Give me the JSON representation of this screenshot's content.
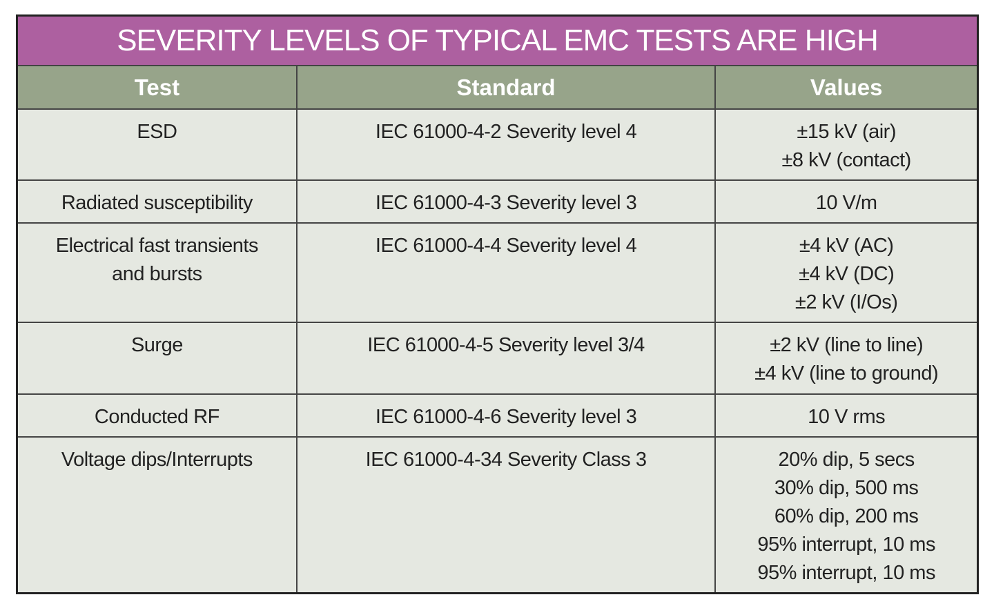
{
  "title": "SEVERITY LEVELS OF TYPICAL EMC TESTS ARE HIGH",
  "headers": [
    "Test",
    "Standard",
    "Values"
  ],
  "rows": [
    {
      "test": [
        "ESD"
      ],
      "standard": "IEC 61000-4-2 Severity level 4",
      "values": [
        "±15 kV (air)",
        "±8 kV (contact)"
      ]
    },
    {
      "test": [
        "Radiated susceptibility"
      ],
      "standard": "IEC 61000-4-3 Severity level 3",
      "values": [
        "10 V/m"
      ]
    },
    {
      "test": [
        "Electrical fast transients",
        "and bursts"
      ],
      "standard": "IEC 61000-4-4 Severity level 4",
      "values": [
        "±4 kV (AC)",
        "±4 kV (DC)",
        "±2 kV (I/Os)"
      ]
    },
    {
      "test": [
        "Surge"
      ],
      "standard": "IEC 61000-4-5 Severity level 3/4",
      "values": [
        "±2 kV (line to line)",
        "±4 kV (line to ground)"
      ]
    },
    {
      "test": [
        "Conducted RF"
      ],
      "standard": "IEC 61000-4-6 Severity level 3",
      "values": [
        "10 V rms"
      ]
    },
    {
      "test": [
        "Voltage dips/Interrupts"
      ],
      "standard": "IEC 61000-4-34 Severity Class 3",
      "values": [
        "20% dip, 5 secs",
        "30% dip, 500 ms",
        "60% dip, 200 ms",
        "95% interrupt, 10 ms",
        "95% interrupt, 10 ms"
      ]
    }
  ]
}
